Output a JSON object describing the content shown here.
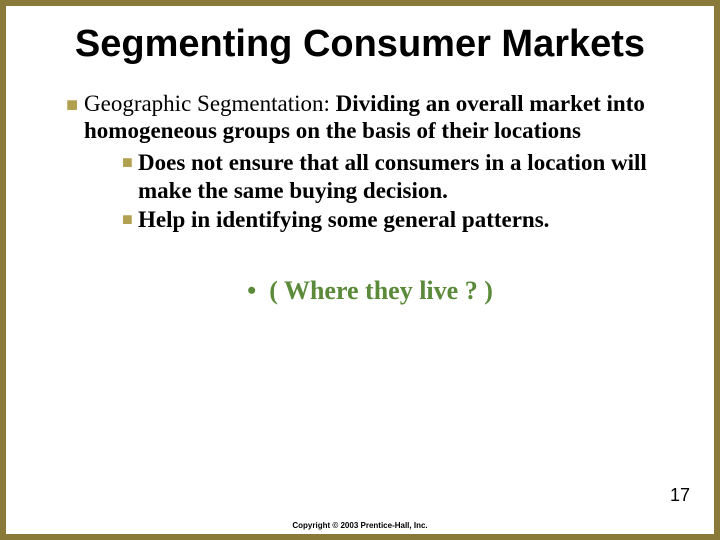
{
  "slide": {
    "title": "Segmenting Consumer Markets",
    "bullet1": {
      "label": "Geographic Segmentation:  ",
      "def": "Dividing an overall market into homogeneous groups on the basis of their locations"
    },
    "sub": [
      "Does not ensure that all consumers in a location will make the same buying decision.",
      "Help in identifying some general patterns."
    ],
    "callout": "( Where they live ? )",
    "pagenum": "17",
    "copyright": "Copyright © 2003 Prentice-Hall, Inc."
  },
  "style": {
    "border_color": "#8a7a3a",
    "bullet_color": "#b0a050",
    "callout_color": "#5a8a3a",
    "title_fontsize": 38,
    "body_fontsize": 23,
    "callout_fontsize": 26,
    "background": "#ffffff"
  }
}
